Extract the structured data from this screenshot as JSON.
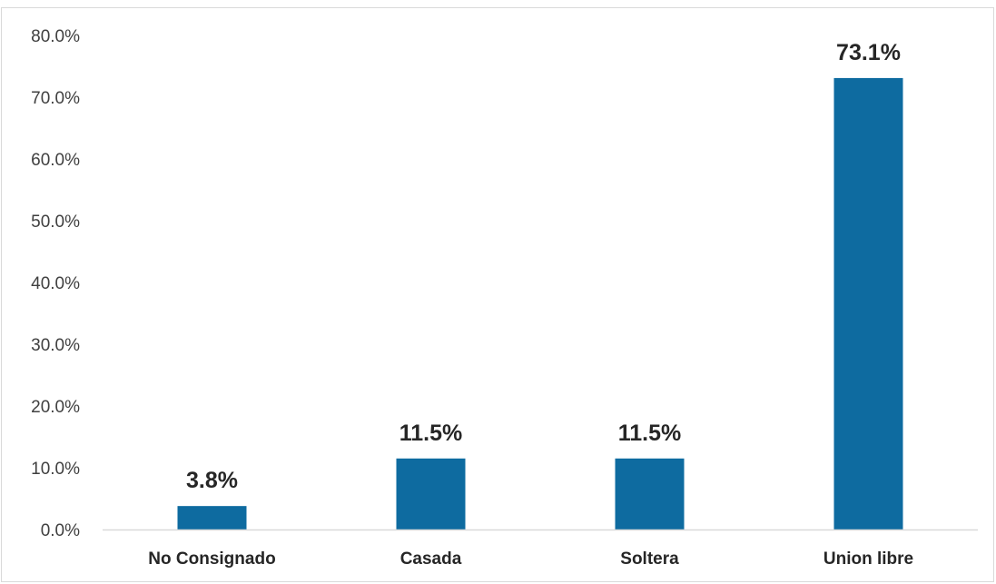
{
  "chart_data": {
    "type": "bar",
    "categories": [
      "No Consignado",
      "Casada",
      "Soltera",
      "Union libre"
    ],
    "values": [
      3.8,
      11.5,
      11.5,
      73.1
    ],
    "data_labels": [
      "3.8%",
      "11.5%",
      "11.5%",
      "73.1%"
    ],
    "y_ticks": [
      0,
      10,
      20,
      30,
      40,
      50,
      60,
      70,
      80
    ],
    "y_tick_labels": [
      "0.0%",
      "10.0%",
      "20.0%",
      "30.0%",
      "40.0%",
      "50.0%",
      "60.0%",
      "70.0%",
      "80.0%"
    ],
    "ylim": [
      0,
      80
    ],
    "grid": false,
    "legend": "none",
    "bar_color": "#0e6ba0",
    "axis_color": "#d9d9d9"
  }
}
